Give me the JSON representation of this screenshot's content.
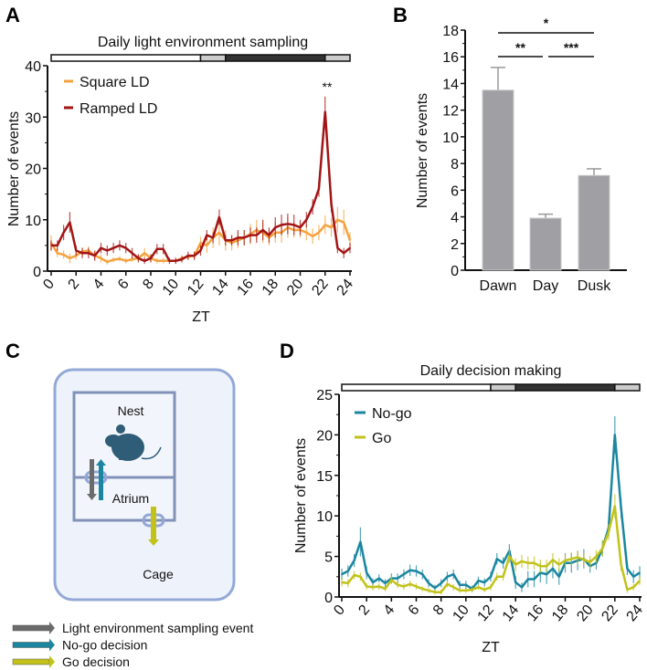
{
  "panels": {
    "a": "A",
    "b": "B",
    "c": "C",
    "d": "D"
  },
  "colors": {
    "square": "#f5a23e",
    "ramped": "#a31515",
    "nogo": "#1a86a0",
    "go": "#c2c21a",
    "bar": "#a0a0a4",
    "diagram_border": "#93a8d6",
    "diagram_fill": "#eef3fb",
    "mouse": "#2f5c76",
    "arrow_grey": "#6b6b6b"
  },
  "chart_data": [
    {
      "type": "line",
      "title": "Daily light environment sampling",
      "xlabel": "ZT",
      "ylabel": "Number of events",
      "xlim": [
        0,
        24
      ],
      "ylim": [
        0,
        40
      ],
      "xticks": [
        "0",
        "2",
        "4",
        "6",
        "8",
        "10",
        "12",
        "14",
        "16",
        "18",
        "20",
        "22",
        "24"
      ],
      "yticks": [
        "0",
        "10",
        "20",
        "30",
        "40"
      ],
      "legend_position": "top-left",
      "light_bar": [
        {
          "from": 0,
          "to": 12,
          "phase": "light"
        },
        {
          "from": 12,
          "to": 14,
          "phase": "ramp"
        },
        {
          "from": 14,
          "to": 22,
          "phase": "dark"
        },
        {
          "from": 22,
          "to": 24,
          "phase": "ramp"
        }
      ],
      "annotation": {
        "text": "**",
        "x": 22
      },
      "x": [
        0,
        0.5,
        1,
        1.5,
        2,
        2.5,
        3,
        3.5,
        4,
        4.5,
        5,
        5.5,
        6,
        6.5,
        7,
        7.5,
        8,
        8.5,
        9,
        9.5,
        10,
        10.5,
        11,
        11.5,
        12,
        12.5,
        13,
        13.5,
        14,
        14.5,
        15,
        15.5,
        16,
        16.5,
        17,
        17.5,
        18,
        18.5,
        19,
        19.5,
        20,
        20.5,
        21,
        21.5,
        22,
        22.5,
        23,
        23.5,
        24
      ],
      "series": [
        {
          "name": "Square LD",
          "color_key": "square",
          "values": [
            5.5,
            3.5,
            3.2,
            2.5,
            3,
            3.8,
            4,
            3,
            2.5,
            1.8,
            2.2,
            2.4,
            2,
            2.3,
            2.5,
            3.5,
            2.5,
            2,
            2,
            2,
            2,
            2.5,
            2.8,
            3,
            5.5,
            5,
            6.5,
            7.5,
            6,
            5.5,
            6,
            6.5,
            7.2,
            8,
            7.5,
            6.5,
            7.5,
            7.5,
            8.5,
            8,
            8,
            7.5,
            6.8,
            7.5,
            9,
            8.5,
            10,
            9.5,
            6
          ],
          "err": [
            1.5,
            0.8,
            0.8,
            1,
            0.8,
            0.8,
            0.8,
            0.8,
            0.8,
            0.5,
            0.5,
            0.5,
            0.5,
            0.5,
            0.5,
            1,
            0.7,
            0.5,
            0.5,
            0.5,
            0.5,
            0.6,
            0.6,
            0.8,
            1.2,
            1.5,
            2,
            2.5,
            2,
            1.5,
            1.5,
            1.5,
            2,
            2,
            2,
            1.5,
            2,
            2,
            2,
            1.5,
            1.5,
            1.5,
            1.5,
            1.5,
            1.8,
            1.8,
            2.5,
            2.5,
            1.5
          ]
        },
        {
          "name": "Ramped LD",
          "color_key": "ramped",
          "values": [
            5,
            5,
            7.5,
            9.5,
            4,
            3.5,
            3.5,
            3,
            4.5,
            4,
            4.5,
            5,
            4.5,
            3.5,
            2.5,
            2,
            2.5,
            4.3,
            4.3,
            2,
            2,
            2.3,
            3,
            3,
            4,
            7,
            6.5,
            10.5,
            6,
            6,
            6.5,
            6.5,
            7,
            7,
            8,
            7,
            8.5,
            9,
            9.2,
            9,
            8.5,
            10,
            12.5,
            16,
            31,
            13,
            4.5,
            3.5,
            4.5
          ],
          "err": [
            1,
            1,
            1.5,
            2,
            1,
            1,
            1,
            1,
            1,
            1,
            1,
            1,
            1,
            1,
            0.8,
            0.6,
            0.8,
            1,
            1,
            0.6,
            0.6,
            0.6,
            0.8,
            0.8,
            1,
            1,
            1,
            1.5,
            1,
            1,
            1.5,
            1.5,
            1.5,
            1.5,
            2,
            1.5,
            2,
            2,
            2,
            2,
            1.5,
            1.5,
            1.5,
            1.5,
            3,
            1.5,
            1,
            1,
            1
          ]
        }
      ]
    },
    {
      "type": "bar",
      "xlabel": "",
      "ylabel": "Number of events",
      "ylim": [
        0,
        18
      ],
      "yticks": [
        "0",
        "2",
        "4",
        "6",
        "8",
        "10",
        "12",
        "14",
        "16",
        "18"
      ],
      "categories": [
        "Dawn",
        "Day",
        "Dusk"
      ],
      "values": [
        13.5,
        3.9,
        7.1
      ],
      "err": [
        1.7,
        0.3,
        0.5
      ],
      "significance": [
        {
          "from": "Dawn",
          "to": "Dusk",
          "label": "*"
        },
        {
          "from": "Dawn",
          "to": "Day",
          "label": "**"
        },
        {
          "from": "Day",
          "to": "Dusk",
          "label": "***"
        }
      ]
    },
    {
      "type": "line",
      "title": "Daily decision making",
      "xlabel": "ZT",
      "ylabel": "Number of events",
      "xlim": [
        0,
        24
      ],
      "ylim": [
        0,
        25
      ],
      "xticks": [
        "0",
        "2",
        "4",
        "6",
        "8",
        "10",
        "12",
        "14",
        "16",
        "18",
        "20",
        "22",
        "24"
      ],
      "yticks": [
        "0",
        "5",
        "10",
        "15",
        "20",
        "25"
      ],
      "legend_position": "top-left",
      "light_bar": [
        {
          "from": 0,
          "to": 12,
          "phase": "light"
        },
        {
          "from": 12,
          "to": 14,
          "phase": "ramp"
        },
        {
          "from": 14,
          "to": 22,
          "phase": "dark"
        },
        {
          "from": 22,
          "to": 24,
          "phase": "ramp"
        }
      ],
      "x": [
        0,
        0.5,
        1,
        1.5,
        2,
        2.5,
        3,
        3.5,
        4,
        4.5,
        5,
        5.5,
        6,
        6.5,
        7,
        7.5,
        8,
        8.5,
        9,
        9.5,
        10,
        10.5,
        11,
        11.5,
        12,
        12.5,
        13,
        13.5,
        14,
        14.5,
        15,
        15.5,
        16,
        16.5,
        17,
        17.5,
        18,
        18.5,
        19,
        19.5,
        20,
        20.5,
        21,
        21.5,
        22,
        22.5,
        23,
        23.5,
        24
      ],
      "series": [
        {
          "name": "No-go",
          "color_key": "nogo",
          "values": [
            2.8,
            3.2,
            4.5,
            6.8,
            3,
            1.8,
            2.3,
            1.7,
            2.3,
            2.3,
            2.8,
            3.3,
            3.2,
            2.8,
            1.7,
            1.1,
            1.7,
            2.5,
            2.8,
            1.5,
            1.5,
            1,
            2,
            1.8,
            2.5,
            4.7,
            4.2,
            5.7,
            1.8,
            1.2,
            2.2,
            2.2,
            3,
            2.8,
            3.5,
            2.5,
            4.2,
            4.2,
            4.5,
            4.7,
            3.8,
            4.2,
            6,
            8.5,
            20,
            11,
            3.5,
            2.5,
            3
          ],
          "err": [
            0.7,
            0.7,
            0.8,
            1.8,
            0.8,
            0.5,
            0.5,
            0.5,
            0.6,
            0.6,
            0.6,
            0.7,
            0.7,
            0.6,
            0.5,
            0.4,
            0.5,
            0.6,
            0.6,
            0.5,
            0.5,
            0.4,
            0.5,
            0.5,
            0.6,
            0.7,
            0.7,
            0.8,
            0.8,
            0.6,
            1,
            1,
            1.2,
            1.2,
            1.2,
            1,
            1.2,
            1.2,
            1.2,
            1.2,
            0.8,
            0.8,
            1,
            1,
            2.3,
            1.2,
            0.8,
            0.8,
            0.8
          ]
        },
        {
          "name": "Go",
          "color_key": "go",
          "values": [
            1.8,
            1.7,
            2.7,
            2.5,
            1.3,
            1.2,
            1.3,
            1,
            2.1,
            1.5,
            1.3,
            1.6,
            1.3,
            1,
            0.8,
            0.6,
            0.6,
            1.6,
            1.2,
            0.8,
            0.8,
            0.9,
            1.2,
            0.9,
            1.2,
            2.5,
            2.5,
            5,
            4,
            4.4,
            4.2,
            4.2,
            3.8,
            3.8,
            4.6,
            4,
            4.5,
            4.7,
            4.9,
            4.6,
            4.3,
            5,
            6,
            8,
            11.2,
            4,
            0.9,
            1.2,
            2
          ],
          "err": [
            0.5,
            0.5,
            0.5,
            0.5,
            0.4,
            0.4,
            0.4,
            0.3,
            0.5,
            0.4,
            0.4,
            0.4,
            0.4,
            0.3,
            0.3,
            0.3,
            0.3,
            0.4,
            0.4,
            0.3,
            0.3,
            0.3,
            0.3,
            0.3,
            0.4,
            0.5,
            0.5,
            0.8,
            0.8,
            0.8,
            0.8,
            0.8,
            0.8,
            0.8,
            0.8,
            0.8,
            0.8,
            0.8,
            0.8,
            0.8,
            0.8,
            0.8,
            1,
            1,
            1.5,
            0.8,
            0.4,
            0.4,
            0.5
          ]
        }
      ]
    }
  ],
  "diagram": {
    "nest_label": "Nest",
    "atrium_label": "Atrium",
    "cage_label": "Cage",
    "legend": [
      {
        "label": "Light environment sampling event",
        "color_key": "arrow_grey"
      },
      {
        "label": "No-go decision",
        "color_key": "nogo"
      },
      {
        "label": "Go decision",
        "color_key": "go"
      }
    ]
  }
}
